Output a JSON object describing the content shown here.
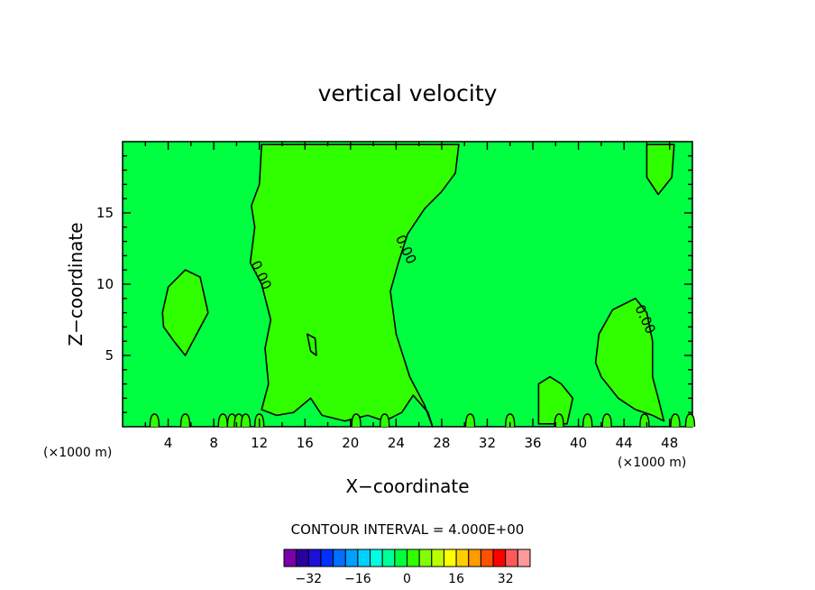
{
  "chart_data": {
    "type": "heatmap",
    "title": "vertical velocity",
    "xlabel": "X−coordinate",
    "ylabel": "Z−coordinate",
    "x_multiplier_left": "(×1000 m)",
    "x_multiplier_right": "(×1000 m)",
    "xlim": [
      0,
      50
    ],
    "ylim": [
      0,
      20
    ],
    "xticks": [
      4,
      8,
      12,
      16,
      20,
      24,
      28,
      32,
      36,
      40,
      44,
      48
    ],
    "yticks": [
      5,
      10,
      15
    ],
    "contour_interval_text": "CONTOUR INTERVAL = 4.000E+00",
    "contour_interval": 4.0,
    "contour_labels": [
      "0.00",
      "0.00",
      "0.00"
    ],
    "colorbar": {
      "levels": [
        -36,
        -32,
        -28,
        -24,
        -20,
        -16,
        -12,
        -8,
        -4,
        0,
        4,
        8,
        12,
        16,
        20,
        24,
        28,
        32,
        36
      ],
      "colors": [
        "#7b00a8",
        "#2a009e",
        "#1a10d8",
        "#0030ff",
        "#0070ff",
        "#00a0ff",
        "#00d0ff",
        "#00ffe0",
        "#00ff9a",
        "#00ff40",
        "#30ff00",
        "#80ff00",
        "#b8ff00",
        "#ffff00",
        "#ffd000",
        "#ff9a00",
        "#ff5000",
        "#ff0000",
        "#ff5a5a",
        "#ff9a9a"
      ],
      "tick_labels": [
        "−32",
        "−16",
        "0",
        "16",
        "32"
      ],
      "tick_values": [
        -32,
        -16,
        0,
        16,
        32
      ]
    },
    "background_band_color": "#00ff40",
    "positive_region_color": "#30ff00",
    "positive_regions": [
      [
        [
          12.2,
          19.8
        ],
        [
          12.0,
          17.0
        ],
        [
          11.3,
          15.5
        ],
        [
          11.6,
          14.0
        ],
        [
          11.2,
          11.5
        ],
        [
          12.2,
          10.0
        ],
        [
          13.0,
          7.5
        ],
        [
          12.5,
          5.5
        ],
        [
          12.8,
          3.0
        ],
        [
          12.2,
          1.2
        ],
        [
          13.5,
          0.8
        ],
        [
          15.0,
          1.0
        ],
        [
          16.5,
          2.0
        ],
        [
          17.5,
          0.8
        ],
        [
          19.5,
          0.4
        ],
        [
          21.5,
          0.8
        ],
        [
          23.0,
          0.4
        ],
        [
          24.5,
          1.0
        ],
        [
          25.5,
          2.2
        ],
        [
          26.8,
          1.0
        ],
        [
          27.2,
          0.0
        ],
        [
          26.5,
          1.5
        ],
        [
          25.2,
          3.5
        ],
        [
          24.0,
          6.5
        ],
        [
          23.5,
          9.5
        ],
        [
          24.2,
          11.5
        ],
        [
          25.0,
          13.5
        ],
        [
          26.5,
          15.3
        ],
        [
          28.0,
          16.5
        ],
        [
          29.2,
          17.8
        ],
        [
          29.5,
          19.8
        ]
      ],
      [
        [
          3.5,
          8.0
        ],
        [
          4.0,
          9.8
        ],
        [
          5.5,
          11.0
        ],
        [
          6.8,
          10.5
        ],
        [
          7.5,
          8.0
        ],
        [
          6.5,
          6.5
        ],
        [
          5.5,
          5.0
        ],
        [
          4.5,
          6.0
        ],
        [
          3.6,
          7.0
        ]
      ],
      [
        [
          41.5,
          4.5
        ],
        [
          41.8,
          6.5
        ],
        [
          43.0,
          8.2
        ],
        [
          45.0,
          9.0
        ],
        [
          46.0,
          8.0
        ],
        [
          46.5,
          6.0
        ],
        [
          46.5,
          3.5
        ],
        [
          47.0,
          2.0
        ],
        [
          47.5,
          0.4
        ],
        [
          46.5,
          0.8
        ],
        [
          45.0,
          1.2
        ],
        [
          43.5,
          2.0
        ],
        [
          42.0,
          3.5
        ]
      ],
      [
        [
          36.5,
          3.0
        ],
        [
          37.5,
          3.5
        ],
        [
          38.5,
          3.0
        ],
        [
          39.5,
          2.0
        ],
        [
          39.0,
          0.2
        ],
        [
          36.5,
          0.2
        ]
      ],
      [
        [
          46.0,
          19.8
        ],
        [
          46.0,
          17.5
        ],
        [
          47.0,
          16.3
        ],
        [
          48.2,
          17.5
        ],
        [
          48.4,
          19.8
        ]
      ],
      [
        [
          16.2,
          6.5
        ],
        [
          16.9,
          6.2
        ],
        [
          17.0,
          5.0
        ],
        [
          16.5,
          5.3
        ]
      ]
    ],
    "small_bumps_x": [
      2.8,
      5.5,
      8.8,
      9.6,
      10.2,
      10.8,
      12.0,
      20.5,
      23.0,
      30.5,
      34.0,
      38.3,
      40.8,
      42.5,
      45.8,
      48.5,
      49.8
    ]
  }
}
